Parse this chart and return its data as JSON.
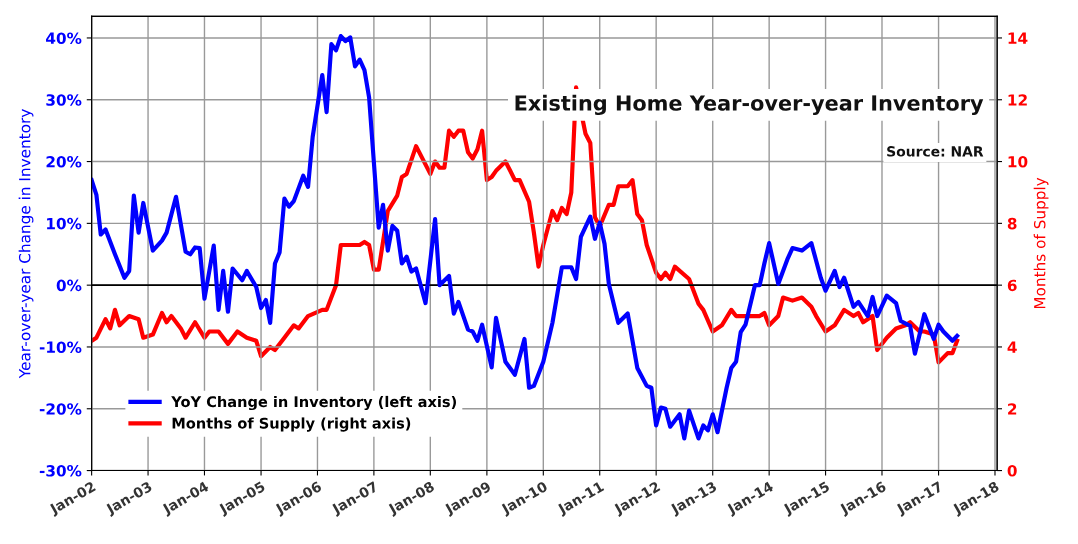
{
  "chart_data": {
    "type": "line",
    "title": "Existing Home Year-over-year Inventory",
    "annotations": [
      "Source: NAR"
    ],
    "ylabel": "Year-over-year Change in Inventory",
    "y2label": "Months of Supply",
    "xlim": [
      "2002-01-01",
      "2018-01-15"
    ],
    "xticks": [
      {
        "value": "2002-01-01",
        "label": "Jan-02"
      },
      {
        "value": "2003-01-01",
        "label": "Jan-03"
      },
      {
        "value": "2004-01-01",
        "label": "Jan-04"
      },
      {
        "value": "2005-01-01",
        "label": "Jan-05"
      },
      {
        "value": "2006-01-01",
        "label": "Jan-06"
      },
      {
        "value": "2007-01-01",
        "label": "Jan-07"
      },
      {
        "value": "2008-01-01",
        "label": "Jan-08"
      },
      {
        "value": "2009-01-01",
        "label": "Jan-09"
      },
      {
        "value": "2010-01-01",
        "label": "Jan-10"
      },
      {
        "value": "2011-01-01",
        "label": "Jan-11"
      },
      {
        "value": "2012-01-01",
        "label": "Jan-12"
      },
      {
        "value": "2013-01-01",
        "label": "Jan-13"
      },
      {
        "value": "2014-01-01",
        "label": "Jan-14"
      },
      {
        "value": "2015-01-01",
        "label": "Jan-15"
      },
      {
        "value": "2016-01-01",
        "label": "Jan-16"
      },
      {
        "value": "2017-01-01",
        "label": "Jan-17"
      },
      {
        "value": "2018-01-01",
        "label": "Jan-18"
      }
    ],
    "ylim": [
      -30,
      43.5
    ],
    "yticks": [
      {
        "value": -30,
        "label": "-30%"
      },
      {
        "value": -20,
        "label": "-20%"
      },
      {
        "value": -10,
        "label": "-10%"
      },
      {
        "value": 0,
        "label": "0%"
      },
      {
        "value": 10,
        "label": "10%"
      },
      {
        "value": 20,
        "label": "20%"
      },
      {
        "value": 30,
        "label": "30%"
      },
      {
        "value": 40,
        "label": "40%"
      }
    ],
    "y2lim": [
      0,
      14.7
    ],
    "y2ticks": [
      0,
      2,
      4,
      6,
      8,
      10,
      12,
      14
    ],
    "ref_lines": [
      {
        "axis": "y",
        "value": 0,
        "color": "#000000"
      }
    ],
    "grid": true,
    "legend": "bottom left",
    "marker": "none",
    "line_style": "solid",
    "series": [
      {
        "name": "YoY Change in Inventory (left axis)",
        "color": "#0000ff",
        "axis": "y",
        "x": [
          "2002-01",
          "2002-02",
          "2002-03",
          "2002-04",
          "2002-06",
          "2002-08",
          "2002-09",
          "2002-10",
          "2002-11",
          "2002-12",
          "2003-02",
          "2003-04",
          "2003-05",
          "2003-07",
          "2003-09",
          "2003-10",
          "2003-11",
          "2003-12",
          "2004-01",
          "2004-03",
          "2004-04",
          "2004-05",
          "2004-06",
          "2004-07",
          "2004-09",
          "2004-10",
          "2004-12",
          "2005-01",
          "2005-02",
          "2005-03",
          "2005-04",
          "2005-05",
          "2005-06",
          "2005-07",
          "2005-08",
          "2005-10",
          "2005-11",
          "2005-12",
          "2006-02",
          "2006-03",
          "2006-04",
          "2006-05",
          "2006-06",
          "2006-07",
          "2006-08",
          "2006-09",
          "2006-10",
          "2006-11",
          "2006-12",
          "2007-02",
          "2007-03",
          "2007-04",
          "2007-05",
          "2007-06",
          "2007-07",
          "2007-08",
          "2007-09",
          "2007-10",
          "2007-12",
          "2008-02",
          "2008-03",
          "2008-05",
          "2008-06",
          "2008-07",
          "2008-09",
          "2008-10",
          "2008-11",
          "2008-12",
          "2009-02",
          "2009-03",
          "2009-05",
          "2009-07",
          "2009-09",
          "2009-10",
          "2009-11",
          "2010-01",
          "2010-03",
          "2010-05",
          "2010-07",
          "2010-08",
          "2010-09",
          "2010-11",
          "2010-12",
          "2011-01",
          "2011-02",
          "2011-03",
          "2011-05",
          "2011-07",
          "2011-09",
          "2011-11",
          "2011-12",
          "2012-01",
          "2012-02",
          "2012-03",
          "2012-04",
          "2012-06",
          "2012-07",
          "2012-08",
          "2012-10",
          "2012-11",
          "2012-12",
          "2013-01",
          "2013-02",
          "2013-04",
          "2013-05",
          "2013-06",
          "2013-07",
          "2013-08",
          "2013-10",
          "2013-11",
          "2013-12",
          "2014-01",
          "2014-03",
          "2014-05",
          "2014-06",
          "2014-08",
          "2014-10",
          "2014-12",
          "2015-01",
          "2015-03",
          "2015-04",
          "2015-05",
          "2015-07",
          "2015-08",
          "2015-10",
          "2015-11",
          "2015-12",
          "2016-02",
          "2016-04",
          "2016-05",
          "2016-07",
          "2016-08",
          "2016-09",
          "2016-10",
          "2016-12",
          "2017-01",
          "2017-02",
          "2017-04",
          "2017-05"
        ],
        "values": [
          17.0,
          14.6,
          8.2,
          9.0,
          5.0,
          1.2,
          2.3,
          14.5,
          8.5,
          13.3,
          5.6,
          7.2,
          8.5,
          14.3,
          5.4,
          5.0,
          6.1,
          6.0,
          -2.2,
          6.4,
          -4.0,
          2.3,
          -4.3,
          2.7,
          0.8,
          2.3,
          -0.3,
          -3.7,
          -2.4,
          -6.1,
          3.5,
          5.3,
          14.0,
          12.7,
          13.6,
          17.7,
          15.9,
          24.0,
          34.0,
          28.0,
          39.0,
          38.0,
          40.3,
          39.5,
          40.1,
          35.4,
          36.5,
          34.8,
          30.4,
          9.3,
          13.0,
          5.6,
          9.6,
          8.8,
          3.5,
          4.6,
          2.2,
          2.7,
          -2.9,
          10.7,
          0.0,
          1.5,
          -4.6,
          -2.7,
          -7.2,
          -7.5,
          -9.0,
          -6.4,
          -13.3,
          -5.3,
          -12.4,
          -14.5,
          -8.7,
          -16.6,
          -16.3,
          -12.4,
          -6.1,
          2.9,
          2.9,
          1.0,
          7.8,
          11.1,
          7.5,
          10.1,
          6.7,
          0.2,
          -6.1,
          -4.6,
          -13.4,
          -16.3,
          -16.6,
          -22.7,
          -19.8,
          -20.0,
          -22.9,
          -20.9,
          -24.8,
          -20.3,
          -24.8,
          -22.7,
          -23.5,
          -20.9,
          -23.8,
          -16.6,
          -13.4,
          -12.4,
          -7.6,
          -6.4,
          0.0,
          0.0,
          3.5,
          6.8,
          0.2,
          4.3,
          6.0,
          5.6,
          6.8,
          1.2,
          -0.9,
          2.3,
          -0.3,
          1.2,
          -3.5,
          -2.7,
          -5.0,
          -1.9,
          -5.0,
          -1.7,
          -2.9,
          -5.8,
          -6.6,
          -11.1,
          -7.9,
          -4.7,
          -8.7,
          -6.4,
          -7.5,
          -9.0,
          -8.2
        ]
      },
      {
        "name": "Months of Supply (right axis)",
        "color": "#ff0000",
        "axis": "y2",
        "x": [
          "2002-01",
          "2002-02",
          "2002-04",
          "2002-05",
          "2002-06",
          "2002-07",
          "2002-09",
          "2002-11",
          "2002-12",
          "2003-02",
          "2003-04",
          "2003-05",
          "2003-06",
          "2003-08",
          "2003-09",
          "2003-11",
          "2004-01",
          "2004-02",
          "2004-04",
          "2004-06",
          "2004-08",
          "2004-10",
          "2004-12",
          "2005-01",
          "2005-03",
          "2005-04",
          "2005-06",
          "2005-08",
          "2005-09",
          "2005-11",
          "2006-02",
          "2006-03",
          "2006-05",
          "2006-06",
          "2006-08",
          "2006-10",
          "2006-11",
          "2006-12",
          "2007-01",
          "2007-02",
          "2007-04",
          "2007-06",
          "2007-07",
          "2007-08",
          "2007-10",
          "2008-01",
          "2008-02",
          "2008-03",
          "2008-04",
          "2008-05",
          "2008-06",
          "2008-07",
          "2008-08",
          "2008-09",
          "2008-10",
          "2008-11",
          "2008-12",
          "2009-01",
          "2009-02",
          "2009-03",
          "2009-05",
          "2009-06",
          "2009-07",
          "2009-08",
          "2009-10",
          "2009-11",
          "2009-12",
          "2010-01",
          "2010-03",
          "2010-04",
          "2010-05",
          "2010-06",
          "2010-07",
          "2010-08",
          "2010-10",
          "2010-11",
          "2010-12",
          "2011-01",
          "2011-03",
          "2011-04",
          "2011-05",
          "2011-07",
          "2011-08",
          "2011-09",
          "2011-10",
          "2011-11",
          "2012-01",
          "2012-02",
          "2012-03",
          "2012-04",
          "2012-05",
          "2012-08",
          "2012-10",
          "2012-11",
          "2013-01",
          "2013-03",
          "2013-05",
          "2013-06",
          "2013-11",
          "2013-12",
          "2014-01",
          "2014-03",
          "2014-04",
          "2014-06",
          "2014-08",
          "2014-10",
          "2014-11",
          "2015-01",
          "2015-03",
          "2015-05",
          "2015-07",
          "2015-08",
          "2015-09",
          "2015-11",
          "2015-12",
          "2016-02",
          "2016-04",
          "2016-06",
          "2016-07",
          "2016-09",
          "2016-10",
          "2016-12",
          "2017-01",
          "2017-03",
          "2017-04",
          "2017-05"
        ],
        "values": [
          4.2,
          4.3,
          4.9,
          4.6,
          5.2,
          4.7,
          5.0,
          4.9,
          4.3,
          4.4,
          5.1,
          4.8,
          5.0,
          4.6,
          4.3,
          4.8,
          4.3,
          4.5,
          4.5,
          4.1,
          4.5,
          4.3,
          4.2,
          3.7,
          4.0,
          3.9,
          4.3,
          4.7,
          4.6,
          5.0,
          5.2,
          5.2,
          6.0,
          7.3,
          7.3,
          7.3,
          7.4,
          7.3,
          6.5,
          6.5,
          8.4,
          8.9,
          9.5,
          9.6,
          10.5,
          9.6,
          10.0,
          9.8,
          9.8,
          11.0,
          10.8,
          11.0,
          11.0,
          10.3,
          10.1,
          10.4,
          11.0,
          9.4,
          9.5,
          9.7,
          10.0,
          9.7,
          9.4,
          9.4,
          8.7,
          7.7,
          6.6,
          7.3,
          8.4,
          8.1,
          8.5,
          8.3,
          9.0,
          12.4,
          10.9,
          10.6,
          8.2,
          7.9,
          8.6,
          8.6,
          9.2,
          9.2,
          9.4,
          8.3,
          8.1,
          7.3,
          6.4,
          6.2,
          6.4,
          6.2,
          6.6,
          6.2,
          5.4,
          5.2,
          4.5,
          4.7,
          5.2,
          5.0,
          5.0,
          5.1,
          4.7,
          5.0,
          5.6,
          5.5,
          5.6,
          5.3,
          5.0,
          4.5,
          4.7,
          5.2,
          5.0,
          5.1,
          4.8,
          5.0,
          3.9,
          4.3,
          4.6,
          4.7,
          4.8,
          4.5,
          4.5,
          4.4,
          3.5,
          3.8,
          3.8,
          4.2
        ]
      }
    ]
  }
}
